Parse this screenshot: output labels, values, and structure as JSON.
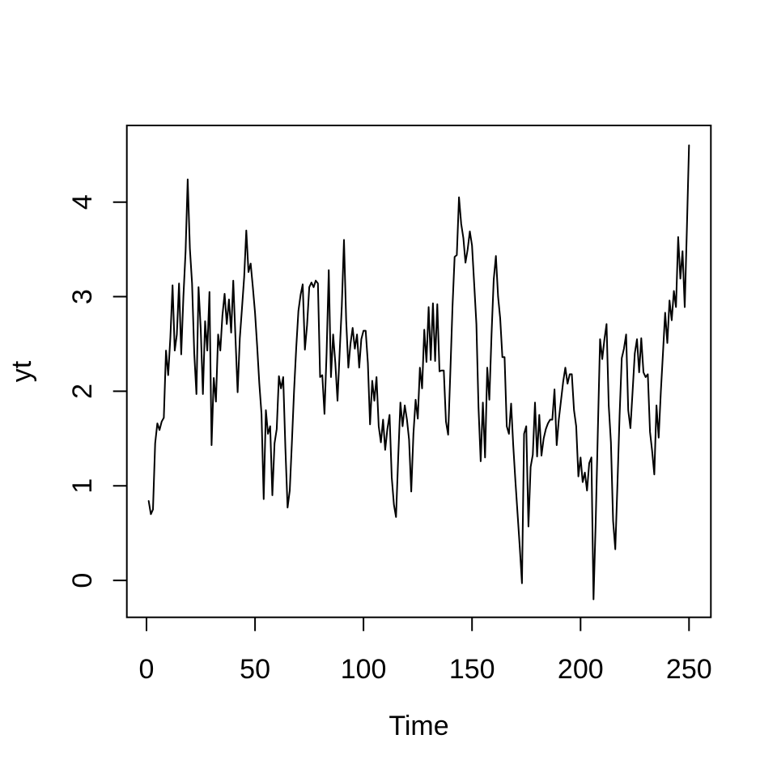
{
  "figure": {
    "background_color": "#ffffff",
    "line_color": "#000000",
    "axis_color": "#000000"
  },
  "chart_data": {
    "type": "line",
    "title": "",
    "xlabel": "Time",
    "ylabel": "yt",
    "x_ticks": [
      0,
      50,
      100,
      150,
      200,
      250
    ],
    "y_ticks": [
      0,
      1,
      2,
      3,
      4
    ],
    "xlim": [
      -9.06,
      260.06
    ],
    "ylim": [
      -0.39,
      4.81
    ],
    "x_start": 1,
    "x_step": 1,
    "n_points": 250,
    "values": [
      0.84,
      0.7,
      0.75,
      1.45,
      1.66,
      1.59,
      1.68,
      1.72,
      2.43,
      2.17,
      2.57,
      3.12,
      2.43,
      2.6,
      3.14,
      2.39,
      3.0,
      3.48,
      4.24,
      3.51,
      3.14,
      2.4,
      1.97,
      3.1,
      2.66,
      1.97,
      2.74,
      2.43,
      3.05,
      1.43,
      2.14,
      1.89,
      2.6,
      2.43,
      2.8,
      3.03,
      2.71,
      2.97,
      2.62,
      3.17,
      2.57,
      1.99,
      2.56,
      2.88,
      3.21,
      3.7,
      3.26,
      3.35,
      3.1,
      2.83,
      2.48,
      2.08,
      1.76,
      0.86,
      1.8,
      1.55,
      1.63,
      0.9,
      1.45,
      1.6,
      2.16,
      2.03,
      2.15,
      1.4,
      0.77,
      0.95,
      1.45,
      2.0,
      2.46,
      2.85,
      3.02,
      3.13,
      2.44,
      2.7,
      3.1,
      3.15,
      3.1,
      3.17,
      3.14,
      2.15,
      2.17,
      1.76,
      2.4,
      3.28,
      2.15,
      2.6,
      2.3,
      1.9,
      2.4,
      2.9,
      3.6,
      2.75,
      2.25,
      2.5,
      2.67,
      2.45,
      2.6,
      2.25,
      2.55,
      2.64,
      2.64,
      2.3,
      1.65,
      2.11,
      1.9,
      2.15,
      1.63,
      1.46,
      1.7,
      1.38,
      1.6,
      1.75,
      1.09,
      0.8,
      0.67,
      1.3,
      1.88,
      1.63,
      1.85,
      1.7,
      1.49,
      0.94,
      1.55,
      1.91,
      1.71,
      2.25,
      2.03,
      2.65,
      2.31,
      2.89,
      2.33,
      2.93,
      2.32,
      2.92,
      2.21,
      2.22,
      2.22,
      1.68,
      1.54,
      2.2,
      2.9,
      3.42,
      3.44,
      4.05,
      3.77,
      3.62,
      3.36,
      3.5,
      3.69,
      3.54,
      3.13,
      2.71,
      1.83,
      1.26,
      1.88,
      1.3,
      2.25,
      1.91,
      2.6,
      3.18,
      3.43,
      3.0,
      2.77,
      2.36,
      2.36,
      1.63,
      1.55,
      1.87,
      1.43,
      1.05,
      0.7,
      0.35,
      -0.03,
      1.55,
      1.63,
      0.57,
      1.2,
      1.33,
      1.88,
      1.31,
      1.75,
      1.32,
      1.5,
      1.6,
      1.66,
      1.7,
      1.7,
      2.02,
      1.43,
      1.7,
      1.9,
      2.1,
      2.25,
      2.08,
      2.18,
      2.18,
      1.8,
      1.63,
      1.1,
      1.3,
      1.04,
      1.14,
      0.95,
      1.24,
      1.3,
      -0.2,
      0.62,
      1.6,
      2.55,
      2.34,
      2.55,
      2.71,
      1.85,
      1.46,
      0.63,
      0.33,
      1.0,
      1.74,
      2.35,
      2.45,
      2.6,
      1.8,
      1.61,
      2.0,
      2.4,
      2.55,
      2.2,
      2.56,
      2.2,
      2.15,
      2.18,
      1.57,
      1.37,
      1.12,
      1.85,
      1.51,
      2.0,
      2.4,
      2.83,
      2.51,
      2.96,
      2.75,
      3.06,
      2.89,
      3.63,
      3.19,
      3.48,
      2.89,
      3.7,
      4.6
    ]
  }
}
